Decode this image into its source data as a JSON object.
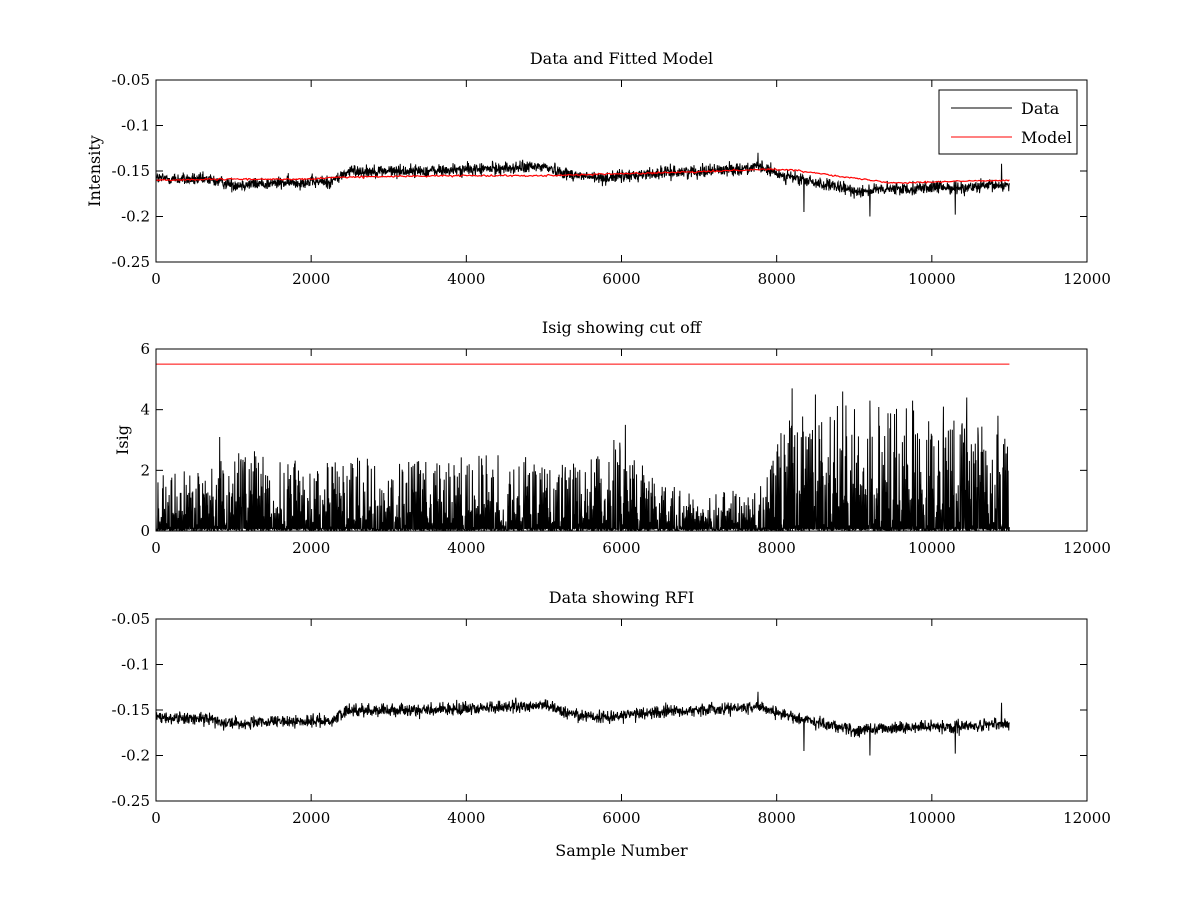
{
  "chart_data": [
    {
      "type": "line",
      "title": "Data and Fitted Model",
      "xlabel": "",
      "ylabel": "Intensity",
      "xlim": [
        0,
        12000
      ],
      "ylim": [
        -0.25,
        -0.05
      ],
      "y_reversed": true,
      "xticks": [
        0,
        2000,
        4000,
        6000,
        8000,
        10000,
        12000
      ],
      "yticks": [
        -0.05,
        -0.1,
        -0.15,
        -0.2,
        -0.25
      ],
      "xtick_labels": [
        "0",
        "2000",
        "4000",
        "6000",
        "8000",
        "10000",
        "12000"
      ],
      "ytick_labels": [
        "-0.05",
        "-0.1",
        "-0.15",
        "-0.2",
        "-0.25"
      ],
      "legend": {
        "position": "top-right",
        "entries": [
          "Data",
          "Model"
        ]
      },
      "series": [
        {
          "name": "Data",
          "color": "#000000",
          "style": "noisy",
          "x_range": [
            0,
            11000
          ],
          "baseline_x": [
            0,
            700,
            1000,
            2000,
            2250,
            2500,
            3500,
            4500,
            5000,
            5300,
            5700,
            6000,
            6500,
            7000,
            7800,
            8000,
            8500,
            9000,
            9500,
            10000,
            10500,
            11000
          ],
          "baseline_y": [
            -0.158,
            -0.16,
            -0.165,
            -0.162,
            -0.162,
            -0.15,
            -0.15,
            -0.147,
            -0.145,
            -0.153,
            -0.158,
            -0.156,
            -0.152,
            -0.15,
            -0.146,
            -0.153,
            -0.163,
            -0.172,
            -0.17,
            -0.168,
            -0.168,
            -0.165
          ],
          "noise_amplitude": 0.009,
          "spikes": [
            {
              "x": 7760,
              "y": -0.13
            },
            {
              "x": 8350,
              "y": -0.195
            },
            {
              "x": 9200,
              "y": -0.2
            },
            {
              "x": 10300,
              "y": -0.198
            },
            {
              "x": 10900,
              "y": -0.142
            }
          ]
        },
        {
          "name": "Model",
          "color": "#ff0000",
          "style": "smooth",
          "x": [
            0,
            1000,
            2000,
            2300,
            3000,
            4000,
            5000,
            6000,
            7000,
            7500,
            7900,
            8200,
            8600,
            9000,
            9500,
            10000,
            11000
          ],
          "y": [
            -0.16,
            -0.159,
            -0.159,
            -0.157,
            -0.156,
            -0.155,
            -0.155,
            -0.153,
            -0.151,
            -0.149,
            -0.148,
            -0.149,
            -0.153,
            -0.158,
            -0.163,
            -0.162,
            -0.16
          ]
        }
      ]
    },
    {
      "type": "line",
      "title": "Isig showing cut off",
      "xlabel": "",
      "ylabel": "Isig",
      "xlim": [
        0,
        12000
      ],
      "ylim": [
        0,
        6
      ],
      "y_reversed": false,
      "xticks": [
        0,
        2000,
        4000,
        6000,
        8000,
        10000,
        12000
      ],
      "yticks": [
        0,
        2,
        4,
        6
      ],
      "xtick_labels": [
        "0",
        "2000",
        "4000",
        "6000",
        "8000",
        "10000",
        "12000"
      ],
      "ytick_labels": [
        "0",
        "2",
        "4",
        "6"
      ],
      "series": [
        {
          "color": "#000000",
          "style": "spiky",
          "x_range": [
            0,
            11000
          ],
          "envelope_x": [
            0,
            700,
            1000,
            2000,
            2500,
            3500,
            4500,
            5000,
            5500,
            6000,
            6500,
            7000,
            7800,
            8000,
            8200,
            9000,
            10000,
            11000
          ],
          "envelope_y": [
            1.8,
            2.2,
            2.8,
            2.2,
            2.5,
            2.3,
            2.6,
            2.3,
            2.2,
            3.0,
            1.6,
            1.2,
            1.5,
            3.2,
            4.0,
            4.2,
            4.0,
            3.2
          ],
          "spikes": [
            {
              "x": 820,
              "y": 3.1
            },
            {
              "x": 5900,
              "y": 3.0
            },
            {
              "x": 6050,
              "y": 3.5
            },
            {
              "x": 8200,
              "y": 4.7
            },
            {
              "x": 8500,
              "y": 4.5
            },
            {
              "x": 8850,
              "y": 4.6
            },
            {
              "x": 9200,
              "y": 4.3
            },
            {
              "x": 9750,
              "y": 4.3
            },
            {
              "x": 10150,
              "y": 4.1
            },
            {
              "x": 10450,
              "y": 4.4
            },
            {
              "x": 10850,
              "y": 3.8
            }
          ]
        },
        {
          "color": "#ff0000",
          "style": "flat",
          "x": [
            0,
            11000
          ],
          "y": [
            5.5,
            5.5
          ]
        }
      ]
    },
    {
      "type": "line",
      "title": "Data showing RFI",
      "xlabel": "Sample Number",
      "ylabel": "",
      "xlim": [
        0,
        12000
      ],
      "ylim": [
        -0.25,
        -0.05
      ],
      "y_reversed": true,
      "xticks": [
        0,
        2000,
        4000,
        6000,
        8000,
        10000,
        12000
      ],
      "yticks": [
        -0.05,
        -0.1,
        -0.15,
        -0.2,
        -0.25
      ],
      "xtick_labels": [
        "0",
        "2000",
        "4000",
        "6000",
        "8000",
        "10000",
        "12000"
      ],
      "ytick_labels": [
        "-0.05",
        "-0.1",
        "-0.15",
        "-0.2",
        "-0.25"
      ],
      "series": [
        {
          "color": "#000000",
          "style": "noisy",
          "x_range": [
            0,
            11000
          ],
          "baseline_x": [
            0,
            700,
            1000,
            2000,
            2250,
            2500,
            3500,
            4500,
            5000,
            5300,
            5700,
            6000,
            6500,
            7000,
            7800,
            8000,
            8500,
            9000,
            9500,
            10000,
            10500,
            11000
          ],
          "baseline_y": [
            -0.158,
            -0.16,
            -0.165,
            -0.162,
            -0.162,
            -0.15,
            -0.15,
            -0.147,
            -0.145,
            -0.153,
            -0.158,
            -0.156,
            -0.152,
            -0.15,
            -0.146,
            -0.153,
            -0.163,
            -0.172,
            -0.17,
            -0.168,
            -0.168,
            -0.165
          ],
          "noise_amplitude": 0.009,
          "spikes": [
            {
              "x": 7760,
              "y": -0.13
            },
            {
              "x": 8350,
              "y": -0.195
            },
            {
              "x": 9200,
              "y": -0.2
            },
            {
              "x": 10300,
              "y": -0.198
            },
            {
              "x": 10900,
              "y": -0.142
            }
          ]
        }
      ]
    }
  ]
}
